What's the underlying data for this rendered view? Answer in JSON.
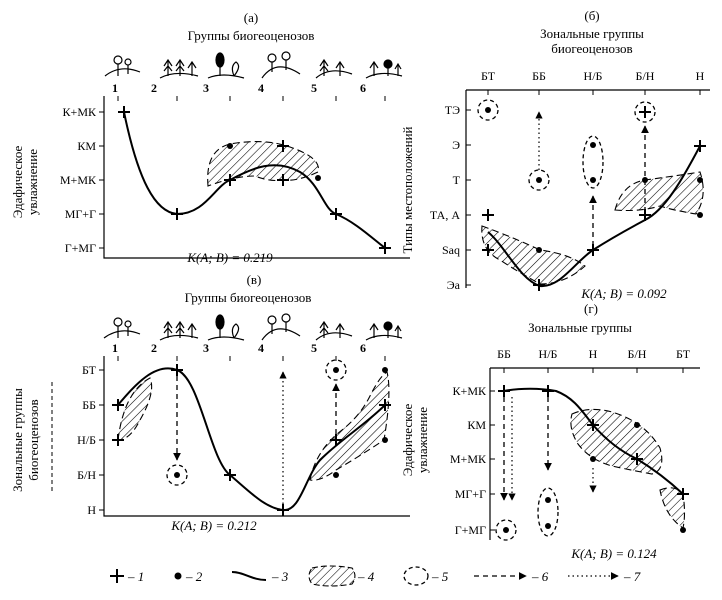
{
  "panels": [
    {
      "id": "a",
      "letter": "(а)",
      "title": [
        "Группы биогеоценозов"
      ],
      "x_ticks": [
        "1",
        "2",
        "3",
        "4",
        "5",
        "6"
      ],
      "y_label": [
        "Эдафическое",
        "увлажнение"
      ],
      "y_ticks": [
        "К+МК",
        "КМ",
        "М+МК",
        "МГ+Г",
        "Г+МГ"
      ],
      "coef": "K(A; B) = 0.219"
    },
    {
      "id": "b",
      "letter": "(б)",
      "title": [
        "Зональные группы",
        "биогеоценозов"
      ],
      "x_ticks": [
        "БТ",
        "ББ",
        "Н/Б",
        "Б/Н",
        "Н"
      ],
      "y_label": [
        "Типы местоположений"
      ],
      "y_ticks": [
        "ТЭ",
        "Э",
        "Т",
        "ТА, А",
        "Saq",
        "Эа"
      ],
      "coef": "K(A; B) = 0.092"
    },
    {
      "id": "v",
      "letter": "(в)",
      "title": [
        "Группы биогеоценозов"
      ],
      "x_ticks": [
        "1",
        "2",
        "3",
        "4",
        "5",
        "6"
      ],
      "y_label": [
        "Зональные группы",
        "биогеоценозов"
      ],
      "y_ticks": [
        "БТ",
        "ББ",
        "Н/Б",
        "Б/Н",
        "Н"
      ],
      "coef": "K(A; B) = 0.212"
    },
    {
      "id": "g",
      "letter": "(г)",
      "title": [
        "Зональные группы"
      ],
      "x_ticks": [
        "ББ",
        "Н/Б",
        "Н",
        "Б/Н",
        "БТ"
      ],
      "y_label": [
        "Эдафическое",
        "увлажнение"
      ],
      "y_ticks": [
        "К+МК",
        "КМ",
        "М+МК",
        "МГ+Г",
        "Г+МГ"
      ],
      "coef": "K(A; B) = 0.124"
    }
  ],
  "legend": [
    {
      "icon": "plus",
      "label": "– 1"
    },
    {
      "icon": "dot",
      "label": "– 2"
    },
    {
      "icon": "line",
      "label": "– 3"
    },
    {
      "icon": "hatch",
      "label": "– 4"
    },
    {
      "icon": "dashed-oval",
      "label": "– 5"
    },
    {
      "icon": "dashed-arrow",
      "label": "– 6"
    },
    {
      "icon": "dotted-arrow",
      "label": "– 7"
    }
  ],
  "colors": {
    "ink": "#000000",
    "background": "#ffffff"
  }
}
